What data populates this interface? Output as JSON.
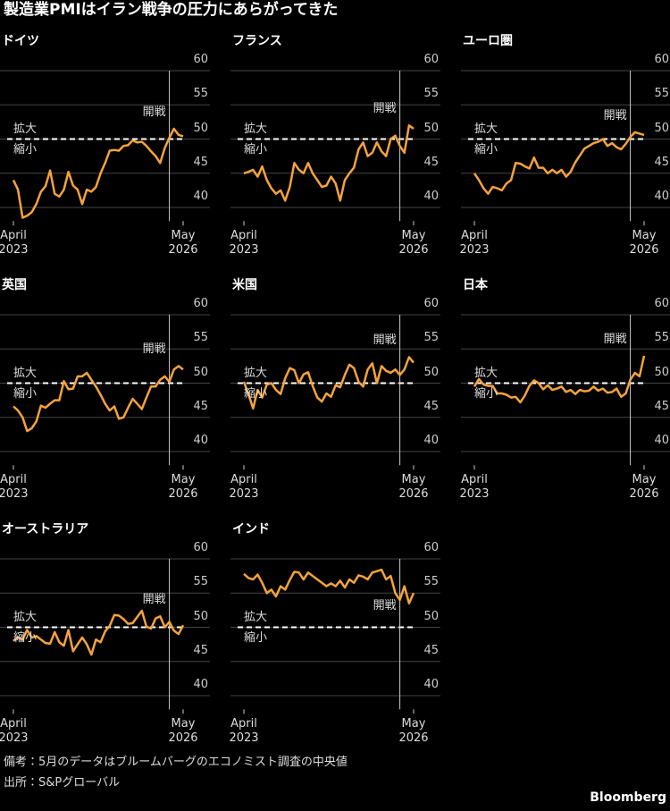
{
  "title": "製造業PMIはイラン戦争の圧力にあらがってきた",
  "note": "備考：5月のデータはブルームバーグのエコノミスト調査の中央値",
  "source": "出所：S&Pグローバル",
  "brand": "Bloomberg",
  "chart_data": [
    {
      "type": "line",
      "title": "ドイツ",
      "color": "#f5a33c",
      "ylim": [
        38,
        60
      ],
      "yticks": [
        40,
        45,
        50,
        55,
        60
      ],
      "grid": true,
      "threshold": 50,
      "above_label": "拡大",
      "below_label": "縮小",
      "event_index": 34,
      "event_label": "開戦",
      "categories": [
        "April\n2023",
        null,
        null,
        null,
        null,
        null,
        null,
        null,
        null,
        null,
        null,
        null,
        null,
        null,
        null,
        null,
        null,
        null,
        null,
        null,
        null,
        null,
        null,
        null,
        null,
        null,
        null,
        null,
        null,
        null,
        null,
        null,
        null,
        null,
        null,
        null,
        null,
        "May\n2026"
      ],
      "values": [
        44.0,
        42.6,
        38.5,
        38.8,
        39.3,
        40.5,
        42.3,
        43.1,
        45.4,
        42.0,
        41.6,
        42.6,
        45.2,
        43.2,
        42.6,
        40.5,
        42.6,
        42.3,
        43.0,
        45.0,
        46.5,
        48.3,
        48.4,
        48.3,
        49.0,
        49.1,
        49.8,
        49.5,
        49.6,
        49.0,
        48.2,
        47.5,
        46.5,
        48.7,
        50.2,
        51.5,
        50.6,
        50.4
      ]
    },
    {
      "type": "line",
      "title": "フランス",
      "color": "#f5a33c",
      "ylim": [
        38,
        60
      ],
      "yticks": [
        40,
        45,
        50,
        55,
        60
      ],
      "grid": true,
      "threshold": 50,
      "above_label": "拡大",
      "below_label": "縮小",
      "event_index": 34,
      "event_label": "開戦",
      "categories": [
        "April\n2023",
        null,
        null,
        null,
        null,
        null,
        null,
        null,
        null,
        null,
        null,
        null,
        null,
        null,
        null,
        null,
        null,
        null,
        null,
        null,
        null,
        null,
        null,
        null,
        null,
        null,
        null,
        null,
        null,
        null,
        null,
        null,
        null,
        null,
        null,
        null,
        null,
        "May\n2026"
      ],
      "values": [
        45.0,
        45.2,
        45.5,
        44.5,
        46.0,
        44.0,
        42.8,
        42.0,
        42.5,
        41.0,
        43.0,
        46.5,
        45.5,
        45.0,
        46.5,
        45.0,
        44.0,
        43.0,
        43.2,
        44.5,
        43.5,
        41.0,
        44.0,
        45.0,
        45.8,
        48.5,
        49.5,
        47.5,
        48.0,
        49.5,
        48.2,
        47.5,
        50.0,
        50.5,
        49.0,
        48.0,
        52.0,
        51.5
      ]
    },
    {
      "type": "line",
      "title": "ユーロ圏",
      "color": "#f5a33c",
      "ylim": [
        38,
        60
      ],
      "yticks": [
        40,
        45,
        50,
        55,
        60
      ],
      "grid": true,
      "threshold": 50,
      "above_label": "拡大",
      "below_label": "縮小",
      "event_index": 34,
      "event_label": "開戦",
      "categories": [
        "April\n2023",
        null,
        null,
        null,
        null,
        null,
        null,
        null,
        null,
        null,
        null,
        null,
        null,
        null,
        null,
        null,
        null,
        null,
        null,
        null,
        null,
        null,
        null,
        null,
        null,
        null,
        null,
        null,
        null,
        null,
        null,
        null,
        null,
        null,
        null,
        null,
        null,
        "May\n2026"
      ],
      "values": [
        45.0,
        44.0,
        42.8,
        42.0,
        43.0,
        42.8,
        42.5,
        43.5,
        44.0,
        46.5,
        46.4,
        46.0,
        45.7,
        47.3,
        45.8,
        45.8,
        45.0,
        45.5,
        45.0,
        45.5,
        44.5,
        45.2,
        46.6,
        47.6,
        48.6,
        49.0,
        49.4,
        49.6,
        50.0,
        49.0,
        49.4,
        48.8,
        48.5,
        49.3,
        50.3,
        51.0,
        50.8,
        50.6
      ]
    },
    {
      "type": "line",
      "title": "英国",
      "color": "#f5a33c",
      "ylim": [
        38,
        60
      ],
      "yticks": [
        40,
        45,
        50,
        55,
        60
      ],
      "grid": true,
      "threshold": 50,
      "above_label": "拡大",
      "below_label": "縮小",
      "event_index": 34,
      "event_label": "開戦",
      "categories": [
        "April\n2023",
        null,
        null,
        null,
        null,
        null,
        null,
        null,
        null,
        null,
        null,
        null,
        null,
        null,
        null,
        null,
        null,
        null,
        null,
        null,
        null,
        null,
        null,
        null,
        null,
        null,
        null,
        null,
        null,
        null,
        null,
        null,
        null,
        null,
        null,
        null,
        null,
        "May\n2026"
      ],
      "values": [
        46.6,
        46.0,
        45.0,
        43.0,
        43.4,
        44.4,
        46.7,
        46.4,
        47.0,
        47.5,
        47.5,
        50.3,
        49.1,
        49.2,
        51.0,
        51.0,
        51.5,
        50.5,
        49.5,
        48.3,
        47.0,
        46.0,
        46.6,
        44.8,
        45.0,
        46.4,
        47.7,
        47.0,
        46.2,
        47.9,
        49.5,
        49.5,
        50.5,
        51.0,
        50.2,
        52.0,
        52.5,
        52.0
      ]
    },
    {
      "type": "line",
      "title": "米国",
      "color": "#f5a33c",
      "ylim": [
        38,
        60
      ],
      "yticks": [
        40,
        45,
        50,
        55,
        60
      ],
      "grid": true,
      "threshold": 50,
      "above_label": "拡大",
      "below_label": "縮小",
      "event_index": 34,
      "event_label": "開戦",
      "categories": [
        "April\n2023",
        null,
        null,
        null,
        null,
        null,
        null,
        null,
        null,
        null,
        null,
        null,
        null,
        null,
        null,
        null,
        null,
        null,
        null,
        null,
        null,
        null,
        null,
        null,
        null,
        null,
        null,
        null,
        null,
        null,
        null,
        null,
        null,
        null,
        null,
        null,
        null,
        "May\n2026"
      ],
      "values": [
        50.2,
        48.4,
        46.3,
        49.0,
        47.9,
        49.8,
        50.0,
        49.0,
        48.4,
        50.7,
        52.2,
        51.9,
        50.0,
        51.3,
        51.6,
        49.6,
        47.9,
        47.3,
        48.5,
        48.0,
        49.7,
        49.4,
        51.2,
        52.7,
        52.2,
        50.2,
        49.5,
        52.0,
        52.9,
        50.0,
        52.5,
        51.8,
        51.5,
        52.0,
        51.2,
        52.0,
        53.8,
        53.0
      ]
    },
    {
      "type": "line",
      "title": "日本",
      "color": "#f5a33c",
      "ylim": [
        38,
        60
      ],
      "yticks": [
        40,
        45,
        50,
        55,
        60
      ],
      "grid": true,
      "threshold": 50,
      "above_label": "拡大",
      "below_label": "縮小",
      "event_index": 34,
      "event_label": "開戦",
      "categories": [
        "April\n2023",
        null,
        null,
        null,
        null,
        null,
        null,
        null,
        null,
        null,
        null,
        null,
        null,
        null,
        null,
        null,
        null,
        null,
        null,
        null,
        null,
        null,
        null,
        null,
        null,
        null,
        null,
        null,
        null,
        null,
        null,
        null,
        null,
        null,
        null,
        null,
        null,
        "May\n2026"
      ],
      "values": [
        49.5,
        50.6,
        49.8,
        49.6,
        49.6,
        48.5,
        48.5,
        48.3,
        47.9,
        48.0,
        47.2,
        48.2,
        49.6,
        50.4,
        50.0,
        49.1,
        49.7,
        49.0,
        49.2,
        49.5,
        48.7,
        49.0,
        48.4,
        49.0,
        48.8,
        48.9,
        49.5,
        48.9,
        49.2,
        48.6,
        48.7,
        49.2,
        48.0,
        48.5,
        50.5,
        51.5,
        51.0,
        54.0
      ]
    },
    {
      "type": "line",
      "title": "オーストラリア",
      "color": "#f5a33c",
      "ylim": [
        38,
        60
      ],
      "yticks": [
        40,
        45,
        50,
        55,
        60
      ],
      "grid": true,
      "threshold": 50,
      "above_label": "拡大",
      "below_label": "縮小",
      "event_index": 34,
      "event_label": "開戦",
      "categories": [
        "April\n2023",
        null,
        null,
        null,
        null,
        null,
        null,
        null,
        null,
        null,
        null,
        null,
        null,
        null,
        null,
        null,
        null,
        null,
        null,
        null,
        null,
        null,
        null,
        null,
        null,
        null,
        null,
        null,
        null,
        null,
        null,
        null,
        null,
        null,
        null,
        null,
        null,
        "May\n2026"
      ],
      "values": [
        48.0,
        48.5,
        48.2,
        49.6,
        48.5,
        48.7,
        48.2,
        47.7,
        47.6,
        49.3,
        47.8,
        47.3,
        49.6,
        46.5,
        47.5,
        48.5,
        47.5,
        46.0,
        48.2,
        47.8,
        49.4,
        50.2,
        51.8,
        51.7,
        51.2,
        50.5,
        50.6,
        51.5,
        52.4,
        50.1,
        49.8,
        51.3,
        51.6,
        50.0,
        50.8,
        49.5,
        49.0,
        50.3
      ]
    },
    {
      "type": "line",
      "title": "インド",
      "color": "#f5a33c",
      "ylim": [
        38,
        60
      ],
      "yticks": [
        40,
        45,
        50,
        55,
        60
      ],
      "grid": true,
      "threshold": 50,
      "above_label": "拡大",
      "below_label": "縮小",
      "event_index": 34,
      "event_label": "開戦",
      "categories": [
        "April\n2023",
        null,
        null,
        null,
        null,
        null,
        null,
        null,
        null,
        null,
        null,
        null,
        null,
        null,
        null,
        null,
        null,
        null,
        null,
        null,
        null,
        null,
        null,
        null,
        null,
        null,
        null,
        null,
        null,
        null,
        null,
        null,
        null,
        null,
        null,
        null,
        null,
        "May\n2026"
      ],
      "values": [
        57.8,
        57.2,
        57.0,
        57.7,
        56.5,
        55.0,
        55.5,
        54.5,
        56.0,
        55.5,
        56.9,
        58.1,
        58.0,
        57.0,
        58.0,
        57.5,
        57.0,
        56.5,
        56.0,
        56.4,
        56.0,
        56.8,
        55.8,
        57.0,
        56.5,
        57.6,
        57.4,
        57.0,
        58.0,
        58.2,
        58.4,
        57.0,
        57.5,
        55.0,
        54.0,
        56.0,
        53.5,
        55.0
      ]
    }
  ]
}
